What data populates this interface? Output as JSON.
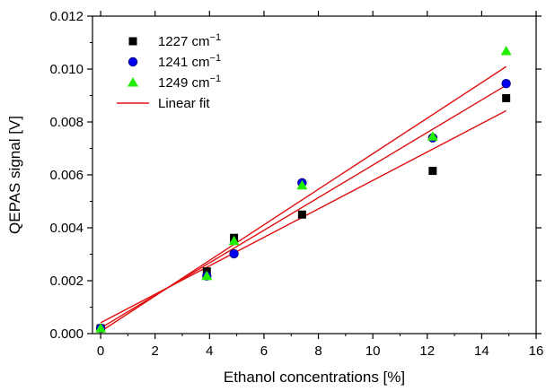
{
  "chart_data": {
    "type": "scatter",
    "xlabel": "Ethanol concentrations [%]",
    "ylabel": "QEPAS signal [V]",
    "xlim": [
      -0.3,
      16
    ],
    "ylim": [
      0,
      0.012
    ],
    "x_ticks": [
      "0",
      "2",
      "4",
      "6",
      "8",
      "10",
      "12",
      "14",
      "16"
    ],
    "y_ticks": [
      "0.000",
      "0.002",
      "0.004",
      "0.006",
      "0.008",
      "0.010",
      "0.012"
    ],
    "grid": false,
    "legend_position": "top-left",
    "series": [
      {
        "name": "1227 cm",
        "name_superscript": "−1",
        "marker": "square",
        "color": "#000000",
        "x": [
          0,
          3.9,
          4.9,
          7.4,
          12.2,
          14.9
        ],
        "y": [
          0.0002,
          0.00235,
          0.00362,
          0.0045,
          0.00615,
          0.0089
        ],
        "fit": {
          "intercept": 0.00041,
          "slope": 0.000538
        }
      },
      {
        "name": "1241 cm",
        "name_superscript": "−1",
        "marker": "circle",
        "color": "#0000ee",
        "x": [
          0,
          3.9,
          4.9,
          7.4,
          12.2,
          14.9
        ],
        "y": [
          0.0002,
          0.00218,
          0.00302,
          0.0057,
          0.0074,
          0.00945
        ],
        "fit": {
          "intercept": 0.00021,
          "slope": 0.000616
        }
      },
      {
        "name": "1249 cm",
        "name_superscript": "−1",
        "marker": "triangle",
        "color": "#22ee00",
        "x": [
          0,
          3.9,
          4.9,
          7.4,
          12.2,
          14.9
        ],
        "y": [
          0.0002,
          0.00218,
          0.0035,
          0.0056,
          0.00745,
          0.01068
        ],
        "fit": {
          "intercept": 8e-05,
          "slope": 0.000672
        }
      }
    ],
    "fit_line": {
      "name": "Linear fit",
      "color": "#e01010",
      "x_range": [
        0,
        14.9
      ]
    }
  }
}
